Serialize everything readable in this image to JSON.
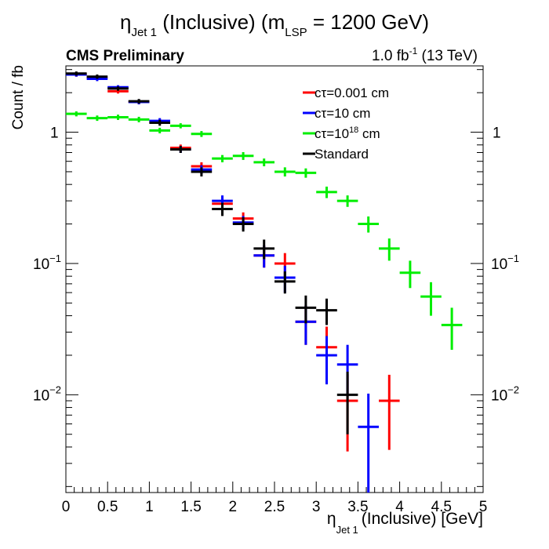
{
  "header": {
    "title_main": "η",
    "title_sub": "Jet 1",
    "title_mid": " (Inclusive) (m",
    "title_sub2": "LSP",
    "title_end": " = 1200 GeV)",
    "experiment": "CMS Preliminary",
    "lumi_pre": "1.0 fb",
    "lumi_sup": "-1",
    "lumi_post": " (13 TeV)"
  },
  "chart_data": {
    "type": "scatter",
    "xlabel_main": "η",
    "xlabel_sub": "Jet 1",
    "xlabel_rest": "(Inclusive) [GeV]",
    "ylabel": "Count / fb",
    "xlim": [
      0,
      5
    ],
    "ylim": [
      0.0018,
      3.2
    ],
    "yscale": "log",
    "x_ticks": [
      "0",
      "0.5",
      "1",
      "1.5",
      "2",
      "2.5",
      "3",
      "3.5",
      "4",
      "4.5",
      "5"
    ],
    "y_tick_labels": [
      {
        "value": 1,
        "base": "1",
        "exp": ""
      },
      {
        "value": 0.1,
        "base": "10",
        "exp": "−1"
      },
      {
        "value": 0.01,
        "base": "10",
        "exp": "−2"
      }
    ],
    "legend_position": "top-right",
    "bin_width": 0.25,
    "series": [
      {
        "label_pre": "cτ=0.001 cm",
        "label_sup": "",
        "label_post": "",
        "color": "#ff0000",
        "x": [
          0.125,
          0.375,
          0.625,
          0.875,
          1.125,
          1.375,
          1.625,
          1.875,
          2.125,
          2.375,
          2.625,
          2.875,
          3.125,
          3.375,
          3.875
        ],
        "y": [
          2.75,
          2.6,
          2.05,
          1.7,
          1.2,
          0.76,
          0.55,
          0.285,
          0.22,
          0.115,
          0.1,
          0.036,
          0.023,
          0.009,
          0.009
        ],
        "yerr_lo": [
          0.1,
          0.1,
          0.08,
          0.07,
          0.06,
          0.045,
          0.04,
          0.03,
          0.025,
          0.022,
          0.02,
          0.012,
          0.01,
          0.0053,
          0.0052
        ],
        "yerr_hi": [
          0.1,
          0.1,
          0.08,
          0.07,
          0.06,
          0.045,
          0.04,
          0.03,
          0.025,
          0.022,
          0.02,
          0.012,
          0.01,
          0.0053,
          0.0052
        ]
      },
      {
        "label_pre": "cτ=10 cm",
        "label_sup": "",
        "label_post": "",
        "color": "#0000ff",
        "x": [
          0.125,
          0.375,
          0.625,
          0.875,
          1.125,
          1.375,
          1.625,
          1.875,
          2.125,
          2.375,
          2.625,
          2.875,
          3.125,
          3.375,
          3.625
        ],
        "y": [
          2.75,
          2.55,
          2.2,
          1.7,
          1.22,
          0.74,
          0.52,
          0.3,
          0.205,
          0.115,
          0.078,
          0.036,
          0.02,
          0.017,
          0.0057
        ],
        "yerr_lo": [
          0.1,
          0.1,
          0.08,
          0.07,
          0.06,
          0.045,
          0.04,
          0.03,
          0.025,
          0.022,
          0.018,
          0.012,
          0.008,
          0.007,
          0.0045
        ],
        "yerr_hi": [
          0.1,
          0.1,
          0.08,
          0.07,
          0.06,
          0.045,
          0.04,
          0.03,
          0.025,
          0.022,
          0.018,
          0.012,
          0.008,
          0.007,
          0.0045
        ]
      },
      {
        "label_pre": "cτ=10",
        "label_sup": "18",
        "label_post": " cm",
        "color": "#00ee00",
        "x": [
          0.125,
          0.375,
          0.625,
          0.875,
          1.125,
          1.375,
          1.625,
          1.875,
          2.125,
          2.375,
          2.625,
          2.875,
          3.125,
          3.375,
          3.625,
          3.875,
          4.125,
          4.375,
          4.625
        ],
        "y": [
          1.38,
          1.28,
          1.3,
          1.25,
          1.03,
          1.12,
          0.97,
          0.63,
          0.66,
          0.59,
          0.5,
          0.49,
          0.35,
          0.3,
          0.2,
          0.13,
          0.085,
          0.056,
          0.034
        ],
        "yerr_lo": [
          0.06,
          0.06,
          0.06,
          0.06,
          0.05,
          0.05,
          0.05,
          0.04,
          0.045,
          0.04,
          0.04,
          0.04,
          0.035,
          0.03,
          0.028,
          0.025,
          0.02,
          0.016,
          0.012
        ],
        "yerr_hi": [
          0.06,
          0.06,
          0.06,
          0.06,
          0.05,
          0.05,
          0.05,
          0.04,
          0.045,
          0.04,
          0.04,
          0.04,
          0.035,
          0.03,
          0.028,
          0.025,
          0.02,
          0.016,
          0.012
        ]
      },
      {
        "label_pre": "Standard",
        "label_sup": "",
        "label_post": "",
        "color": "#000000",
        "x": [
          0.125,
          0.375,
          0.625,
          0.875,
          1.125,
          1.375,
          1.625,
          1.875,
          2.125,
          2.375,
          2.625,
          2.875,
          3.125,
          3.375
        ],
        "y": [
          2.8,
          2.65,
          2.15,
          1.72,
          1.18,
          0.74,
          0.5,
          0.26,
          0.2,
          0.13,
          0.073,
          0.046,
          0.044,
          0.01
        ],
        "yerr_lo": [
          0.1,
          0.1,
          0.08,
          0.07,
          0.06,
          0.045,
          0.04,
          0.03,
          0.025,
          0.022,
          0.014,
          0.011,
          0.01,
          0.005
        ],
        "yerr_hi": [
          0.1,
          0.1,
          0.08,
          0.07,
          0.06,
          0.045,
          0.04,
          0.03,
          0.025,
          0.022,
          0.014,
          0.011,
          0.01,
          0.005
        ]
      }
    ]
  }
}
